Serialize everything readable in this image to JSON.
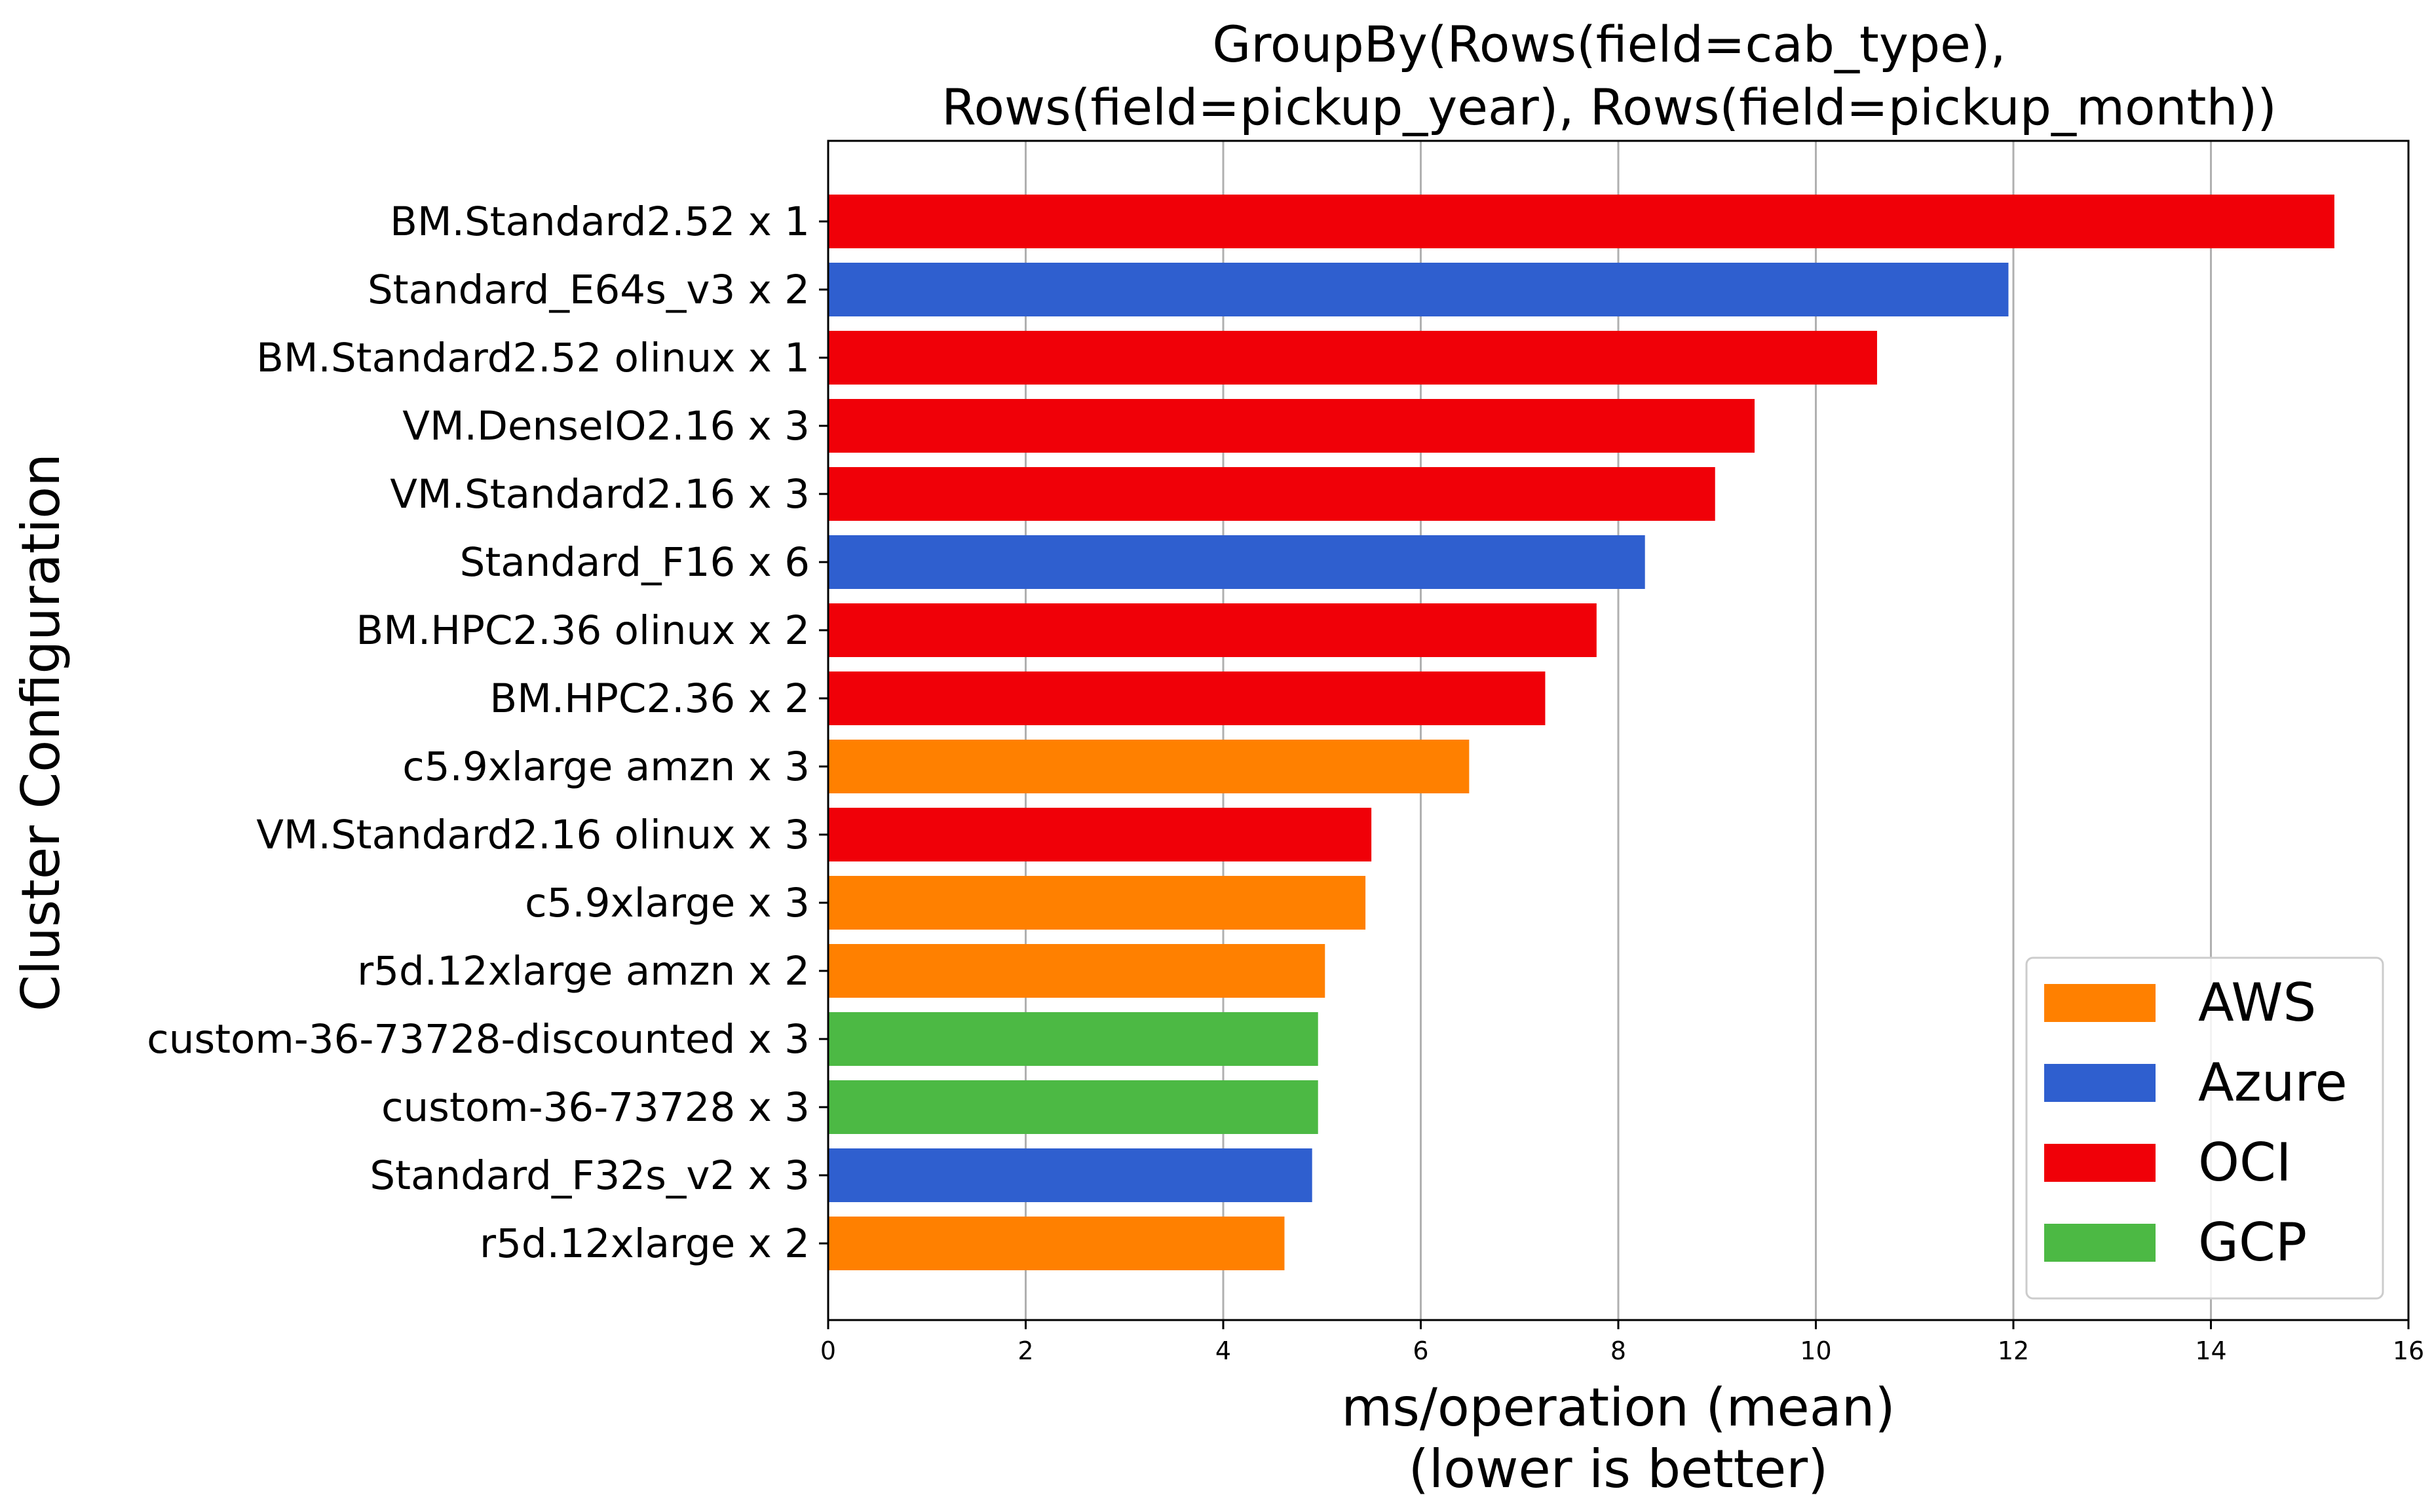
{
  "chart_data": {
    "type": "bar",
    "orientation": "horizontal",
    "title_lines": [
      "GroupBy(Rows(field=cab_type),",
      "Rows(field=pickup_year), Rows(field=pickup_month))"
    ],
    "xlabel_lines": [
      "ms/operation (mean)",
      "(lower is better)"
    ],
    "ylabel": "Cluster Configuration",
    "xlim": [
      0,
      16
    ],
    "xticks": [
      0,
      2,
      4,
      6,
      8,
      10,
      12,
      14,
      16
    ],
    "grid": "vertical",
    "legend_placement": "lower-right",
    "legend": [
      {
        "name": "AWS",
        "color": "#ff8000"
      },
      {
        "name": "Azure",
        "color": "#2f5fcf"
      },
      {
        "name": "OCI",
        "color": "#f00008"
      },
      {
        "name": "GCP",
        "color": "#4cb944"
      }
    ],
    "categories": [
      "BM.Standard2.52 x 1",
      "Standard_E64s_v3 x 2",
      "BM.Standard2.52 olinux x 1",
      "VM.DenseIO2.16 x 3",
      "VM.Standard2.16 x 3",
      "Standard_F16 x 6",
      "BM.HPC2.36 olinux x 2",
      "BM.HPC2.36 x 2",
      "c5.9xlarge amzn x 3",
      "VM.Standard2.16 olinux x 3",
      "c5.9xlarge x 3",
      "r5d.12xlarge amzn x 2",
      "custom-36-73728-discounted x 3",
      "custom-36-73728 x 3",
      "Standard_F32s_v2 x 3",
      "r5d.12xlarge x 2"
    ],
    "values": [
      15.25,
      11.95,
      10.62,
      9.38,
      8.98,
      8.27,
      7.78,
      7.26,
      6.49,
      5.5,
      5.44,
      5.03,
      4.96,
      4.96,
      4.9,
      4.62
    ],
    "providers": [
      "OCI",
      "Azure",
      "OCI",
      "OCI",
      "OCI",
      "Azure",
      "OCI",
      "OCI",
      "AWS",
      "OCI",
      "AWS",
      "AWS",
      "GCP",
      "GCP",
      "Azure",
      "AWS"
    ]
  }
}
